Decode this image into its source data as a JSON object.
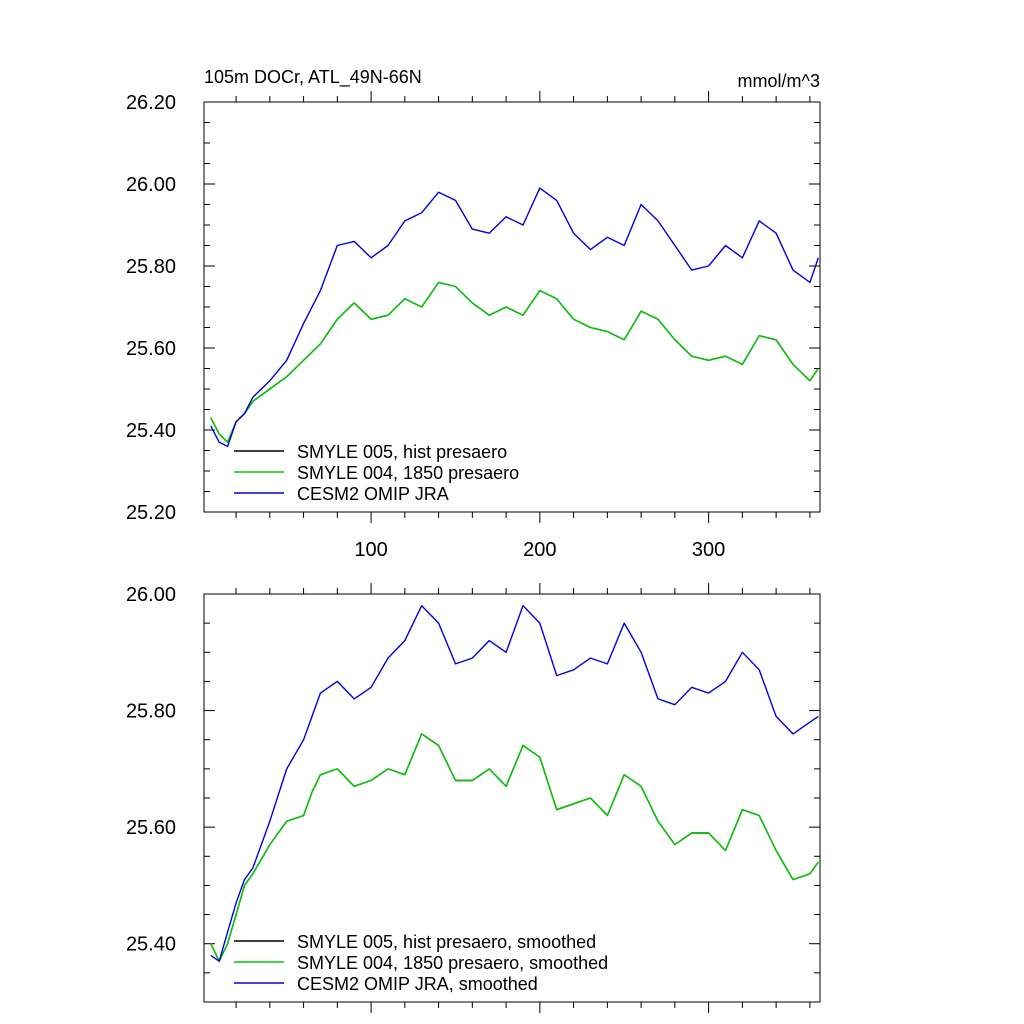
{
  "figure": {
    "title": "105m DOCr, ATL_49N-66N",
    "units": "mmol/m^3"
  },
  "chart_data": [
    {
      "type": "line",
      "title": "105m DOCr, ATL_49N-66N",
      "units_label": "mmol/m^3",
      "xlim": [
        1,
        366
      ],
      "ylim": [
        25.2,
        26.2
      ],
      "x_ticks": [
        100,
        200,
        300
      ],
      "y_ticks": [
        25.2,
        25.4,
        25.6,
        25.8,
        26.0,
        26.2
      ],
      "y_tick_labels": [
        "25.20",
        "25.40",
        "25.60",
        "25.80",
        "26.00",
        "26.20"
      ],
      "legend_position": "bottom-left",
      "grid": false,
      "series": [
        {
          "name": "SMYLE 005, hist presaero",
          "color": "#000000",
          "x": [
            5,
            10,
            15,
            20,
            25,
            30,
            40,
            50,
            60,
            70,
            80,
            90,
            100,
            110,
            120,
            130,
            140,
            150,
            160,
            170,
            180,
            190,
            200,
            210,
            220,
            230,
            240,
            250,
            260,
            270,
            280,
            290,
            300,
            310,
            320,
            330,
            340,
            350,
            360,
            365
          ],
          "y": [
            25.43,
            25.39,
            25.37,
            25.42,
            25.44,
            25.47,
            25.5,
            25.53,
            25.57,
            25.61,
            25.67,
            25.71,
            25.67,
            25.68,
            25.72,
            25.7,
            25.76,
            25.75,
            25.71,
            25.68,
            25.7,
            25.68,
            25.74,
            25.72,
            25.67,
            25.65,
            25.64,
            25.62,
            25.69,
            25.67,
            25.62,
            25.58,
            25.57,
            25.58,
            25.56,
            25.63,
            25.62,
            25.56,
            25.52,
            25.55
          ]
        },
        {
          "name": "SMYLE 004, 1850 presaero",
          "color": "#00cc00",
          "x": [
            5,
            10,
            15,
            20,
            25,
            30,
            40,
            50,
            60,
            70,
            80,
            90,
            100,
            110,
            120,
            130,
            140,
            150,
            160,
            170,
            180,
            190,
            200,
            210,
            220,
            230,
            240,
            250,
            260,
            270,
            280,
            290,
            300,
            310,
            320,
            330,
            340,
            350,
            360,
            365
          ],
          "y": [
            25.43,
            25.39,
            25.37,
            25.42,
            25.44,
            25.47,
            25.5,
            25.53,
            25.57,
            25.61,
            25.67,
            25.71,
            25.67,
            25.68,
            25.72,
            25.7,
            25.76,
            25.75,
            25.71,
            25.68,
            25.7,
            25.68,
            25.74,
            25.72,
            25.67,
            25.65,
            25.64,
            25.62,
            25.69,
            25.67,
            25.62,
            25.58,
            25.57,
            25.58,
            25.56,
            25.63,
            25.62,
            25.56,
            25.52,
            25.55
          ]
        },
        {
          "name": "CESM2 OMIP JRA",
          "color": "#0000dd",
          "x": [
            5,
            10,
            15,
            20,
            25,
            30,
            40,
            50,
            60,
            70,
            80,
            90,
            100,
            110,
            120,
            130,
            140,
            150,
            160,
            170,
            180,
            190,
            200,
            210,
            220,
            230,
            240,
            250,
            260,
            270,
            280,
            290,
            300,
            310,
            320,
            330,
            340,
            350,
            360,
            365
          ],
          "y": [
            25.41,
            25.37,
            25.36,
            25.42,
            25.44,
            25.48,
            25.52,
            25.57,
            25.66,
            25.74,
            25.85,
            25.86,
            25.82,
            25.85,
            25.91,
            25.93,
            25.98,
            25.96,
            25.89,
            25.88,
            25.92,
            25.9,
            25.99,
            25.96,
            25.88,
            25.84,
            25.87,
            25.85,
            25.95,
            25.91,
            25.85,
            25.79,
            25.8,
            25.85,
            25.82,
            25.91,
            25.88,
            25.79,
            25.76,
            25.82
          ]
        }
      ]
    },
    {
      "type": "line",
      "xlim": [
        1,
        366
      ],
      "ylim": [
        25.3,
        26.0
      ],
      "x_ticks": [
        100,
        200,
        300
      ],
      "y_ticks": [
        25.4,
        25.6,
        25.8,
        26.0
      ],
      "y_tick_labels": [
        "25.40",
        "25.60",
        "25.80",
        "26.00"
      ],
      "legend_position": "bottom-left",
      "grid": false,
      "series": [
        {
          "name": "SMYLE 005, hist presaero, smoothed",
          "color": "#000000",
          "x": [
            5,
            10,
            15,
            20,
            25,
            30,
            40,
            50,
            60,
            65,
            70,
            80,
            90,
            100,
            110,
            120,
            130,
            140,
            150,
            160,
            170,
            180,
            190,
            200,
            210,
            220,
            230,
            240,
            250,
            260,
            270,
            280,
            290,
            300,
            310,
            320,
            330,
            340,
            350,
            360,
            365
          ],
          "y": [
            25.4,
            25.37,
            25.4,
            25.45,
            25.5,
            25.52,
            25.57,
            25.61,
            25.62,
            25.66,
            25.69,
            25.7,
            25.67,
            25.68,
            25.7,
            25.69,
            25.76,
            25.74,
            25.68,
            25.68,
            25.7,
            25.67,
            25.74,
            25.72,
            25.63,
            25.64,
            25.65,
            25.62,
            25.69,
            25.67,
            25.61,
            25.57,
            25.59,
            25.59,
            25.56,
            25.63,
            25.62,
            25.56,
            25.51,
            25.52,
            25.54
          ]
        },
        {
          "name": "SMYLE 004, 1850 presaero, smoothed",
          "color": "#00cc00",
          "x": [
            5,
            10,
            15,
            20,
            25,
            30,
            40,
            50,
            60,
            65,
            70,
            80,
            90,
            100,
            110,
            120,
            130,
            140,
            150,
            160,
            170,
            180,
            190,
            200,
            210,
            220,
            230,
            240,
            250,
            260,
            270,
            280,
            290,
            300,
            310,
            320,
            330,
            340,
            350,
            360,
            365
          ],
          "y": [
            25.4,
            25.37,
            25.4,
            25.45,
            25.5,
            25.52,
            25.57,
            25.61,
            25.62,
            25.66,
            25.69,
            25.7,
            25.67,
            25.68,
            25.7,
            25.69,
            25.76,
            25.74,
            25.68,
            25.68,
            25.7,
            25.67,
            25.74,
            25.72,
            25.63,
            25.64,
            25.65,
            25.62,
            25.69,
            25.67,
            25.61,
            25.57,
            25.59,
            25.59,
            25.56,
            25.63,
            25.62,
            25.56,
            25.51,
            25.52,
            25.54
          ]
        },
        {
          "name": "CESM2 OMIP JRA, smoothed",
          "color": "#0000dd",
          "x": [
            5,
            10,
            15,
            20,
            25,
            30,
            40,
            50,
            60,
            65,
            70,
            80,
            90,
            100,
            110,
            120,
            130,
            140,
            150,
            160,
            170,
            180,
            190,
            200,
            210,
            220,
            230,
            240,
            250,
            260,
            270,
            280,
            290,
            300,
            310,
            320,
            330,
            340,
            350,
            360,
            365
          ],
          "y": [
            25.38,
            25.37,
            25.42,
            25.47,
            25.51,
            25.53,
            25.61,
            25.7,
            25.75,
            25.79,
            25.83,
            25.85,
            25.82,
            25.84,
            25.89,
            25.92,
            25.98,
            25.95,
            25.88,
            25.89,
            25.92,
            25.9,
            25.98,
            25.95,
            25.86,
            25.87,
            25.89,
            25.88,
            25.95,
            25.9,
            25.82,
            25.81,
            25.84,
            25.83,
            25.85,
            25.9,
            25.87,
            25.79,
            25.76,
            25.78,
            25.79
          ]
        }
      ]
    }
  ]
}
